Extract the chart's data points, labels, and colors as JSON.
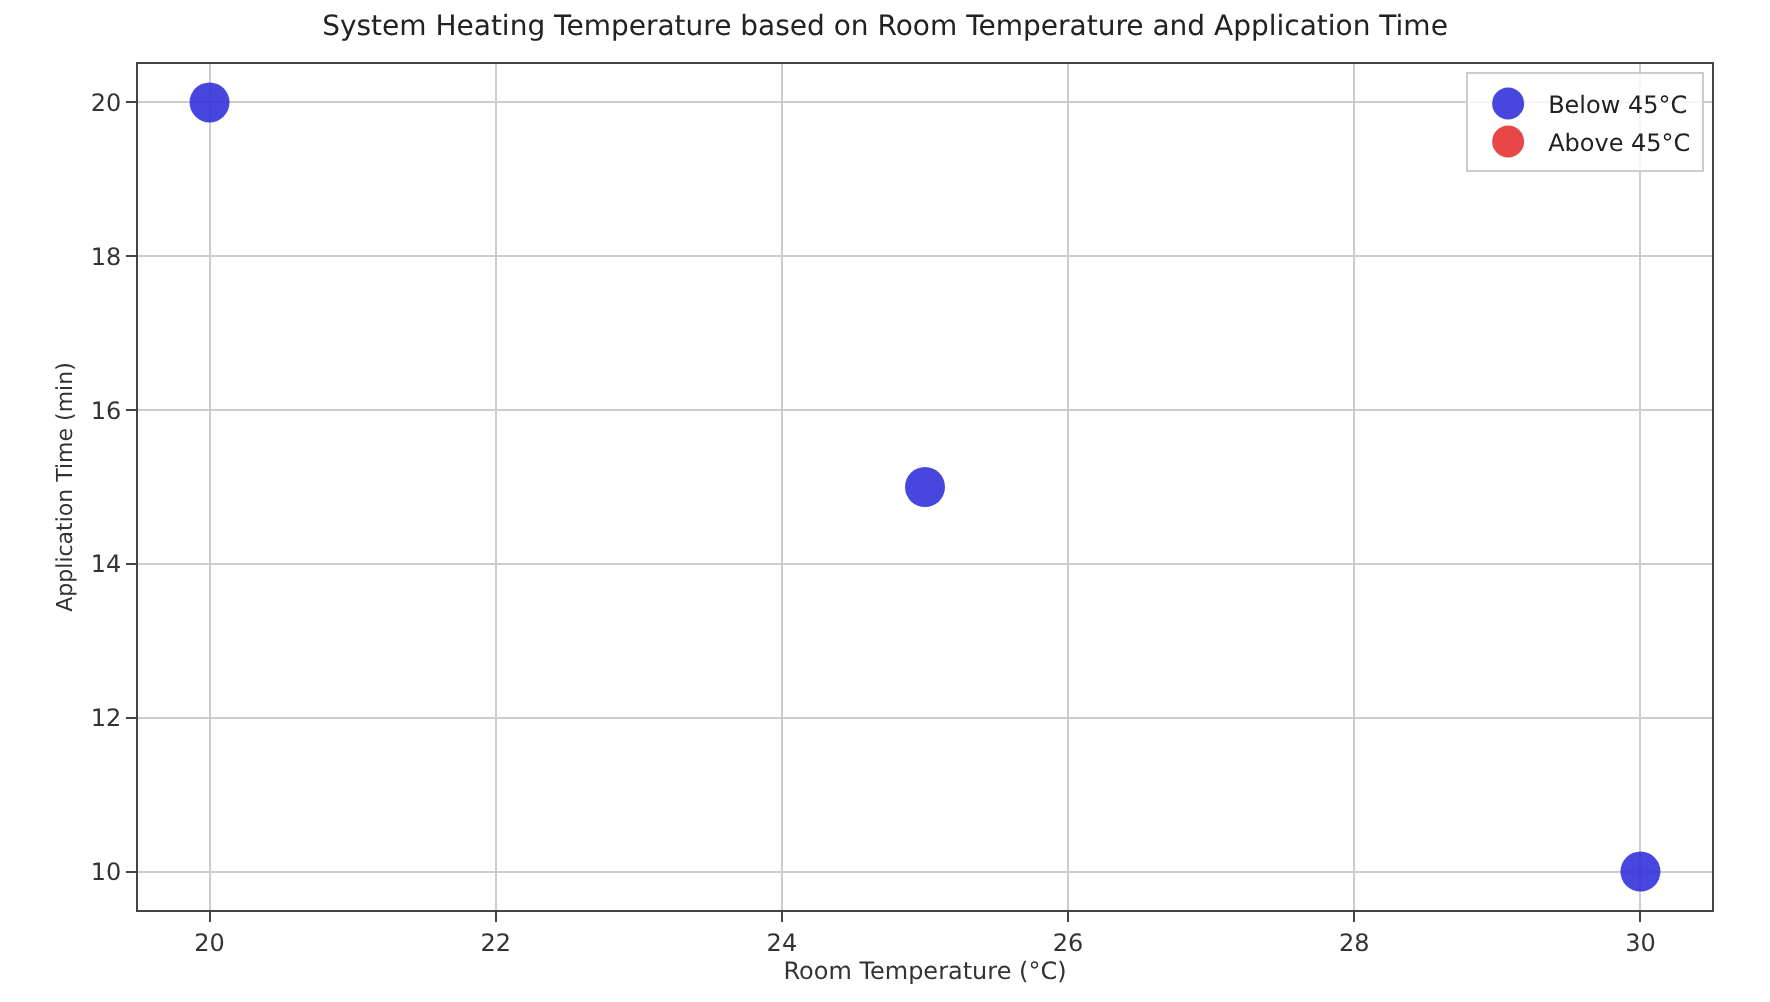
{
  "chart_data": {
    "type": "scatter",
    "title": "System Heating Temperature based on Room Temperature and Application Time",
    "xlabel": "Room Temperature (°C)",
    "ylabel": "Application Time (min)",
    "x": [
      20,
      25,
      30
    ],
    "series": [
      {
        "name": "Below 45°C",
        "color": "#3333dd",
        "values": [
          20,
          15,
          10
        ]
      },
      {
        "name": "Above 45°C",
        "color": "#e53333",
        "values": [
          null,
          null,
          null
        ]
      }
    ],
    "xlim": [
      19.5,
      30.5
    ],
    "xticks": [
      20,
      22,
      24,
      26,
      28,
      30
    ],
    "ylim": [
      9.5,
      20.5
    ],
    "yticks": [
      10,
      12,
      14,
      16,
      18,
      20
    ],
    "grid": true,
    "legend": "top right",
    "marker": "circle"
  }
}
